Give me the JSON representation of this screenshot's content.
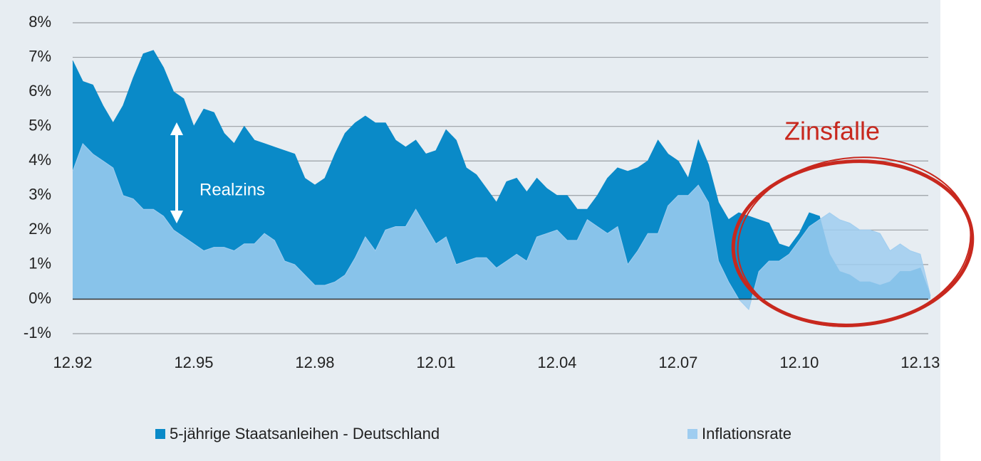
{
  "chart_data": {
    "type": "area",
    "x": [
      "12.92",
      "03.93",
      "06.93",
      "09.93",
      "12.93",
      "03.94",
      "06.94",
      "09.94",
      "12.94",
      "03.95",
      "06.95",
      "09.95",
      "12.95",
      "03.96",
      "06.96",
      "09.96",
      "12.96",
      "03.97",
      "06.97",
      "09.97",
      "12.97",
      "03.98",
      "06.98",
      "09.98",
      "12.98",
      "03.99",
      "06.99",
      "09.99",
      "12.99",
      "03.00",
      "06.00",
      "09.00",
      "12.00",
      "03.01",
      "06.01",
      "09.01",
      "12.01",
      "03.02",
      "06.02",
      "09.02",
      "12.02",
      "03.03",
      "06.03",
      "09.03",
      "12.03",
      "03.04",
      "06.04",
      "09.04",
      "12.04",
      "03.05",
      "06.05",
      "09.05",
      "12.05",
      "03.06",
      "06.06",
      "09.06",
      "12.06",
      "03.07",
      "06.07",
      "09.07",
      "12.07",
      "03.08",
      "06.08",
      "09.08",
      "12.08",
      "03.09",
      "06.09",
      "09.09",
      "12.09",
      "03.10",
      "06.10",
      "09.10",
      "12.10",
      "03.11",
      "06.11",
      "09.11",
      "12.11",
      "03.12",
      "06.12",
      "09.12",
      "12.12",
      "03.13",
      "06.13",
      "09.13",
      "12.13",
      "03.14"
    ],
    "series": [
      {
        "name": "5-jährige Staatsanleihen - Deutschland",
        "color": "#0a8ac8",
        "values": [
          6.9,
          6.3,
          6.2,
          5.6,
          5.1,
          5.6,
          6.4,
          7.1,
          7.2,
          6.7,
          6.0,
          5.8,
          5.0,
          5.5,
          5.4,
          4.8,
          4.5,
          5.0,
          4.6,
          4.5,
          4.4,
          4.3,
          4.2,
          3.5,
          3.3,
          3.5,
          4.2,
          4.8,
          5.1,
          5.3,
          5.1,
          5.1,
          4.6,
          4.4,
          4.6,
          4.2,
          4.3,
          4.9,
          4.6,
          3.8,
          3.6,
          3.2,
          2.8,
          3.4,
          3.5,
          3.1,
          3.5,
          3.2,
          3.0,
          3.0,
          2.6,
          2.6,
          3.0,
          3.5,
          3.8,
          3.7,
          3.8,
          4.0,
          4.6,
          4.2,
          4.0,
          3.5,
          4.6,
          3.9,
          2.8,
          2.3,
          2.5,
          2.4,
          2.3,
          2.2,
          1.6,
          1.5,
          1.9,
          2.5,
          2.4,
          1.3,
          0.8,
          0.7,
          0.5,
          0.5,
          0.4,
          0.5,
          0.8,
          0.8,
          0.9,
          0.1
        ]
      },
      {
        "name": "Inflationsrate",
        "color": "#9fcdf0",
        "values": [
          3.7,
          4.5,
          4.2,
          4.0,
          3.8,
          3.0,
          2.9,
          2.6,
          2.6,
          2.4,
          2.0,
          1.8,
          1.6,
          1.4,
          1.5,
          1.5,
          1.4,
          1.6,
          1.6,
          1.9,
          1.7,
          1.1,
          1.0,
          0.7,
          0.4,
          0.4,
          0.5,
          0.7,
          1.2,
          1.8,
          1.4,
          2.0,
          2.1,
          2.1,
          2.6,
          2.1,
          1.6,
          1.8,
          1.0,
          1.1,
          1.2,
          1.2,
          0.9,
          1.1,
          1.3,
          1.1,
          1.8,
          1.9,
          2.0,
          1.7,
          1.7,
          2.3,
          2.1,
          1.9,
          2.1,
          1.0,
          1.4,
          1.9,
          1.9,
          2.7,
          3.0,
          3.0,
          3.3,
          2.8,
          1.1,
          0.5,
          0.0,
          -0.3,
          0.8,
          1.1,
          1.1,
          1.3,
          1.7,
          2.1,
          2.3,
          2.5,
          2.3,
          2.2,
          2.0,
          2.0,
          1.9,
          1.4,
          1.6,
          1.4,
          1.3,
          0.1
        ]
      }
    ],
    "xlim": [
      "12.92",
      "03.14"
    ],
    "xticks": [
      "12.92",
      "12.95",
      "12.98",
      "12.01",
      "12.04",
      "12.07",
      "12.10",
      "12.13"
    ],
    "ylim": [
      -1,
      8
    ],
    "yticks": [
      {
        "value": -1,
        "label": "-1%"
      },
      {
        "value": 0,
        "label": "0%"
      },
      {
        "value": 1,
        "label": "1%"
      },
      {
        "value": 2,
        "label": "2%"
      },
      {
        "value": 3,
        "label": "3%"
      },
      {
        "value": 4,
        "label": "4%"
      },
      {
        "value": 5,
        "label": "5%"
      },
      {
        "value": 6,
        "label": "6%"
      },
      {
        "value": 7,
        "label": "7%"
      },
      {
        "value": 8,
        "label": "8%"
      }
    ],
    "grid": true,
    "legend": "bottom",
    "annotations": [
      "Realzins",
      "Zinsfalle"
    ]
  }
}
